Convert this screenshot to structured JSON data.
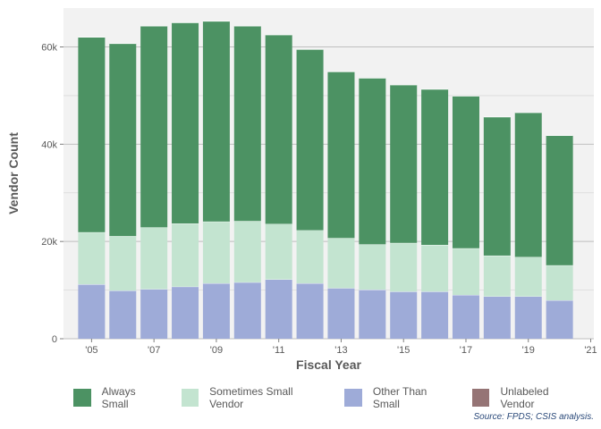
{
  "chart_data": {
    "type": "bar",
    "stacked": true,
    "xlabel": "Fiscal Year",
    "ylabel": "Vendor Count",
    "ylim": [
      0,
      68000
    ],
    "xlim": [
      2004.1,
      2021.1
    ],
    "x": [
      2005,
      2006,
      2007,
      2008,
      2009,
      2010,
      2011,
      2012,
      2013,
      2014,
      2015,
      2016,
      2017,
      2018,
      2019,
      2020
    ],
    "x_ticks": [
      2005,
      2007,
      2009,
      2011,
      2013,
      2015,
      2017,
      2019,
      2021
    ],
    "x_tick_labels": [
      "'05",
      "'07",
      "'09",
      "'11",
      "'13",
      "'15",
      "'17",
      "'19",
      "'21"
    ],
    "y_ticks": [
      0,
      20000,
      40000,
      60000
    ],
    "y_tick_labels": [
      "0",
      "20k",
      "40k",
      "60k"
    ],
    "grid": true,
    "legend_position": "bottom",
    "series": [
      {
        "name": "Other Than Small",
        "color": "#9eabd8",
        "values": [
          11200,
          9900,
          10200,
          10700,
          11400,
          11600,
          12200,
          11400,
          10400,
          10100,
          9700,
          9700,
          9000,
          8700,
          8700,
          7900
        ]
      },
      {
        "name": "Sometimes Small Vendor",
        "color": "#c3e4d0",
        "values": [
          10700,
          11200,
          12700,
          13000,
          12700,
          12600,
          11400,
          10900,
          10300,
          9300,
          10000,
          9600,
          9600,
          8400,
          8100,
          7200
        ]
      },
      {
        "name": "Always Small",
        "color": "#4c9263",
        "values": [
          40100,
          39600,
          41400,
          41300,
          41200,
          40100,
          38900,
          37200,
          34200,
          34200,
          32500,
          32000,
          31300,
          28500,
          29700,
          26700
        ]
      },
      {
        "name": "Unlabeled Vendor",
        "color": "#957475",
        "values": [
          0,
          0,
          0,
          0,
          0,
          0,
          0,
          0,
          0,
          0,
          0,
          0,
          0,
          0,
          0,
          0
        ]
      }
    ],
    "legend_order": [
      "Always Small",
      "Sometimes Small Vendor",
      "Other Than Small",
      "Unlabeled Vendor"
    ]
  },
  "colors": {
    "panel_background": "#f2f2f2",
    "grid_major": "#bfbfbf",
    "grid_minor": "#d9d9d9",
    "axis_text": "#595959",
    "axis_title": "#595959"
  },
  "source": "Source: FPDS; CSIS analysis."
}
